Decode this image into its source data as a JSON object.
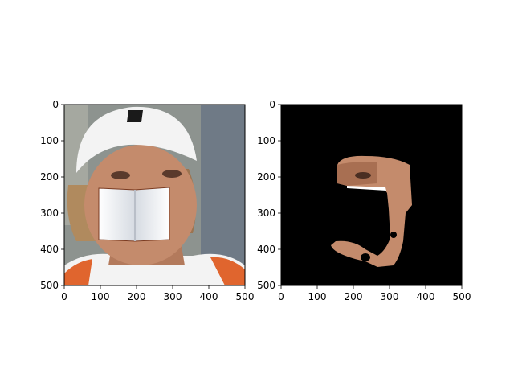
{
  "figure": {
    "background": "#ffffff",
    "axes_color": "#000000"
  },
  "chart_data": [
    {
      "type": "image",
      "panel": "left",
      "description_free": true,
      "image_content": "photo of a woman wearing a white cap, mouth region covered by an open book",
      "xlim": [
        0,
        500
      ],
      "ylim": [
        500,
        0
      ],
      "xticks": [
        "0",
        "100",
        "200",
        "300",
        "400",
        "500"
      ],
      "yticks": [
        "0",
        "100",
        "200",
        "300",
        "400",
        "500"
      ],
      "grid": false
    },
    {
      "type": "image",
      "panel": "right",
      "image_content": "segmentation mask on black background showing visible face skin region",
      "xlim": [
        0,
        500
      ],
      "ylim": [
        500,
        0
      ],
      "xticks": [
        "0",
        "100",
        "200",
        "300",
        "400",
        "500"
      ],
      "yticks": [
        "0",
        "100",
        "200",
        "300",
        "400",
        "500"
      ],
      "grid": false
    }
  ],
  "colors": {
    "cap": "#f3f3f3",
    "skin": "#c48b6c",
    "skin_dark": "#8a5a45",
    "background_blur": "#8a8f8a",
    "shirt_orange": "#e0652e",
    "book_page": "#f1f3f6",
    "mask_bg": "#000000"
  }
}
